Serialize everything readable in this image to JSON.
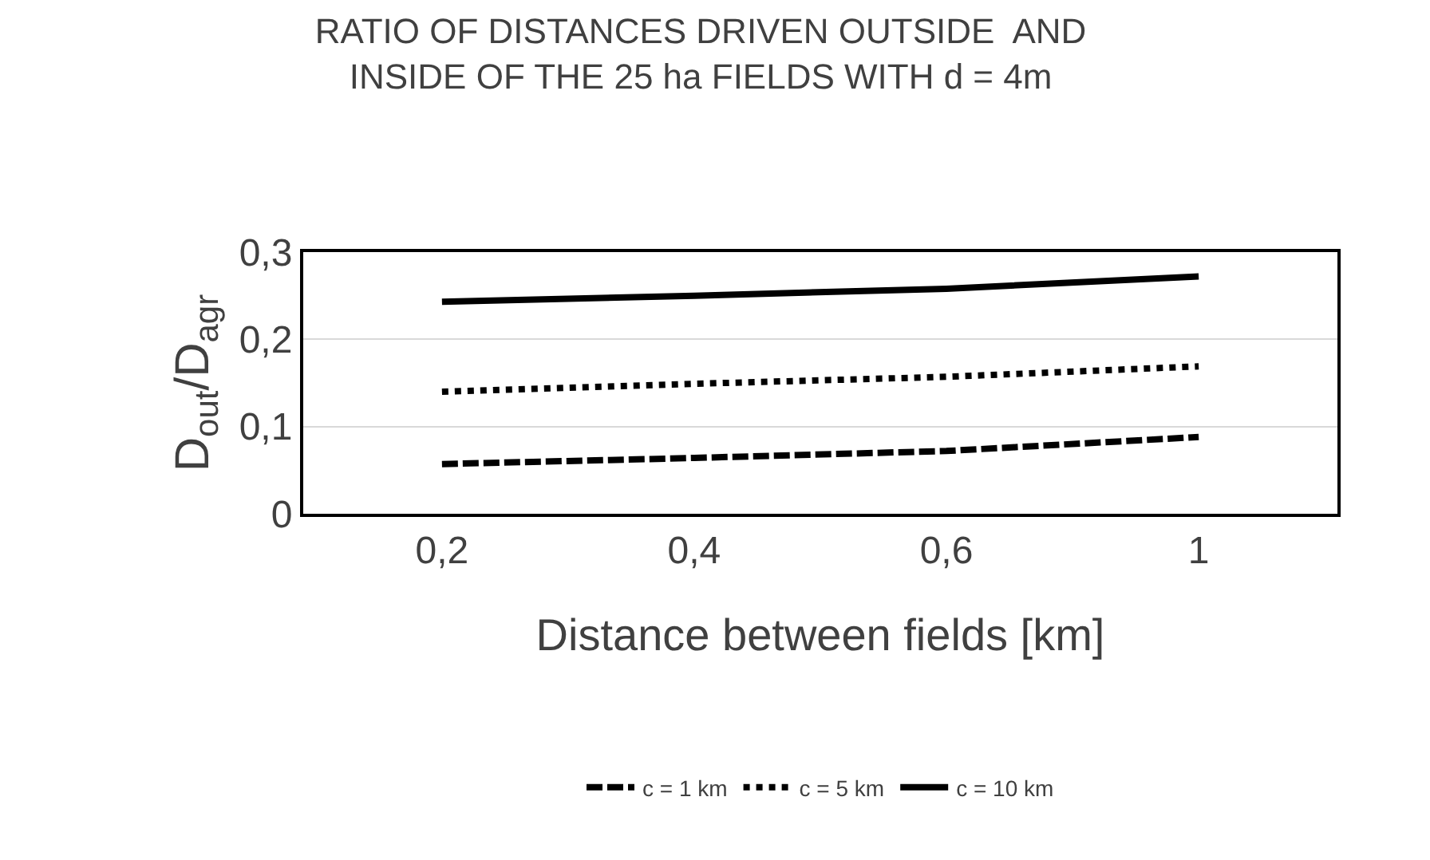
{
  "chart_data": {
    "type": "line",
    "title": "RATIO OF DISTANCES DRIVEN OUTSIDE  AND\nINSIDE OF THE 25 ha FIELDS WITH d = 4m",
    "xlabel": "Distance between fields [km]",
    "ylabel": "D$_{out}$/D$_{agr}$",
    "categories": [
      "0,2",
      "0,4",
      "0,6",
      "1"
    ],
    "series": [
      {
        "name": "c = 1 km",
        "color": "#000000",
        "line_style": "dashed",
        "values": [
          0.057,
          0.064,
          0.072,
          0.088
        ]
      },
      {
        "name": "c = 5 km",
        "color": "#000000",
        "line_style": "dotted",
        "values": [
          0.14,
          0.149,
          0.157,
          0.169
        ]
      },
      {
        "name": "c = 10 km",
        "color": "#000000",
        "line_style": "solid",
        "values": [
          0.243,
          0.25,
          0.258,
          0.272
        ]
      }
    ],
    "ylim": [
      0,
      0.3
    ],
    "yticks": [
      {
        "value": 0,
        "label": "0"
      },
      {
        "value": 0.1,
        "label": "0,1"
      },
      {
        "value": 0.2,
        "label": "0,2"
      },
      {
        "value": 0.3,
        "label": "0,3"
      }
    ],
    "grid": "y",
    "legend": "bottom",
    "marker": "none"
  }
}
